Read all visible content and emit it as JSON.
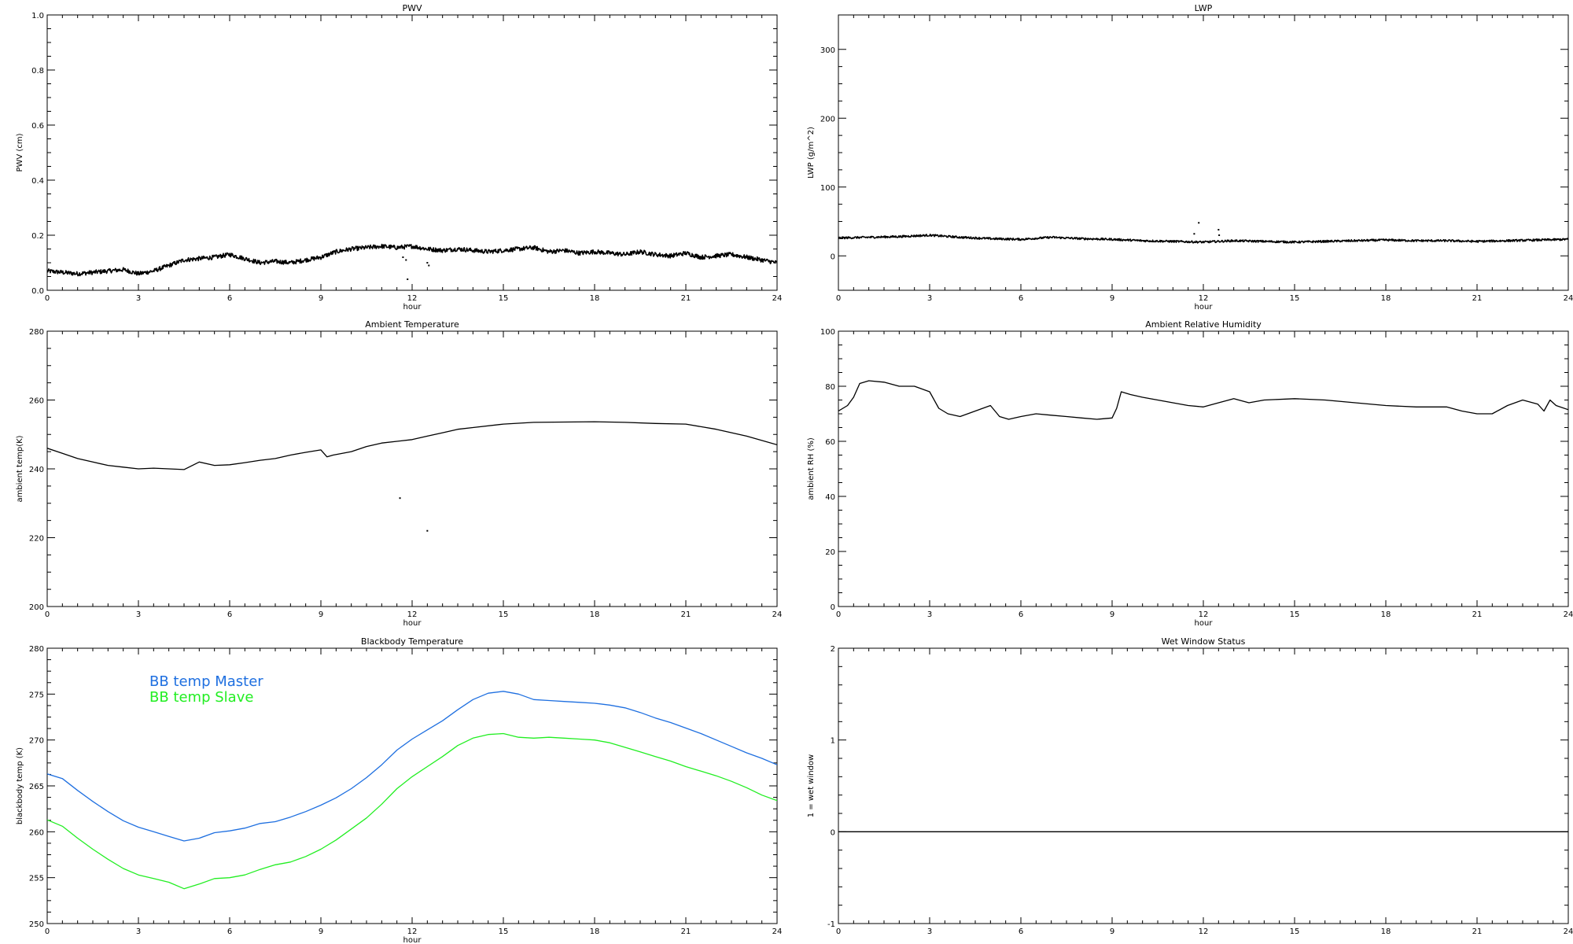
{
  "chart_data": [
    {
      "id": "pwv",
      "type": "scatter",
      "title": "PWV",
      "xlabel": "hour",
      "ylabel": "PWV (cm)",
      "xlim": [
        0,
        24
      ],
      "ylim": [
        0,
        1.0
      ],
      "xticks": [
        0,
        3,
        6,
        9,
        12,
        15,
        18,
        21,
        24
      ],
      "yticks": [
        0.0,
        0.2,
        0.4,
        0.6,
        0.8,
        1.0
      ],
      "ytick_labels": [
        "0.0",
        "0.2",
        "0.4",
        "0.6",
        "0.8",
        "1.0"
      ],
      "series": [
        {
          "color": "#000000",
          "noise": 0.008,
          "x": [
            0,
            0.5,
            1,
            1.5,
            2,
            2.5,
            3,
            3.5,
            4,
            4.5,
            5,
            5.5,
            6,
            6.5,
            7,
            7.5,
            8,
            8.5,
            9,
            9.5,
            10,
            10.5,
            11,
            11.5,
            12,
            12.5,
            13,
            13.5,
            14,
            14.5,
            15,
            15.5,
            16,
            16.5,
            17,
            17.5,
            18,
            18.5,
            19,
            19.5,
            20,
            20.5,
            21,
            21.5,
            22,
            22.5,
            23,
            23.5,
            24
          ],
          "y": [
            0.07,
            0.065,
            0.06,
            0.065,
            0.07,
            0.075,
            0.06,
            0.07,
            0.09,
            0.11,
            0.115,
            0.12,
            0.13,
            0.115,
            0.1,
            0.105,
            0.1,
            0.11,
            0.12,
            0.14,
            0.15,
            0.155,
            0.16,
            0.155,
            0.16,
            0.15,
            0.145,
            0.15,
            0.145,
            0.14,
            0.145,
            0.15,
            0.155,
            0.14,
            0.145,
            0.135,
            0.14,
            0.135,
            0.13,
            0.14,
            0.13,
            0.125,
            0.135,
            0.12,
            0.125,
            0.13,
            0.12,
            0.11,
            0.1
          ]
        },
        {
          "mode": "points",
          "color": "#000000",
          "x": [
            11.7,
            11.8,
            11.85,
            12.5,
            12.55
          ],
          "y": [
            0.12,
            0.11,
            0.04,
            0.1,
            0.09
          ]
        }
      ]
    },
    {
      "id": "lwp",
      "type": "scatter",
      "title": "LWP",
      "xlabel": "hour",
      "ylabel": "LWP (g/m^2)",
      "xlim": [
        0,
        24
      ],
      "ylim": [
        -50,
        350
      ],
      "xticks": [
        0,
        3,
        6,
        9,
        12,
        15,
        18,
        21,
        24
      ],
      "yticks": [
        0,
        100,
        200,
        300
      ],
      "ytick_labels": [
        "0",
        "100",
        "200",
        "300"
      ],
      "series": [
        {
          "color": "#000000",
          "noise": 1.5,
          "x": [
            0,
            1,
            2,
            3,
            4,
            5,
            6,
            7,
            8,
            9,
            10,
            11,
            12,
            13,
            14,
            15,
            16,
            17,
            18,
            19,
            20,
            21,
            22,
            23,
            24
          ],
          "y": [
            26,
            27,
            28,
            30,
            27,
            25,
            24,
            27,
            25,
            24,
            22,
            21,
            20,
            22,
            21,
            20,
            21,
            22,
            23,
            22,
            22,
            21,
            22,
            23,
            24
          ]
        },
        {
          "mode": "points",
          "color": "#000000",
          "x": [
            11.7,
            11.85,
            12.5,
            12.52
          ],
          "y": [
            32,
            48,
            38,
            30
          ]
        }
      ]
    },
    {
      "id": "ambient-temp",
      "type": "line",
      "title": "Ambient Temperature",
      "xlabel": "hour",
      "ylabel": "ambient temp(K)",
      "xlim": [
        0,
        24
      ],
      "ylim": [
        200,
        280
      ],
      "xticks": [
        0,
        3,
        6,
        9,
        12,
        15,
        18,
        21,
        24
      ],
      "yticks": [
        200,
        220,
        240,
        260,
        280
      ],
      "ytick_labels": [
        "200",
        "220",
        "240",
        "260",
        "280"
      ],
      "series": [
        {
          "color": "#000000",
          "x": [
            0,
            0.5,
            1,
            1.5,
            2,
            2.5,
            3,
            3.5,
            4,
            4.5,
            5,
            5.5,
            6,
            6.5,
            7,
            7.5,
            8,
            8.5,
            9,
            9.2,
            9.4,
            10,
            10.5,
            11,
            11.5,
            12,
            12.5,
            13,
            13.5,
            14,
            15,
            16,
            17,
            18,
            19,
            20,
            21,
            22,
            23,
            24
          ],
          "y": [
            246,
            244.5,
            243,
            242,
            241,
            240.5,
            240,
            240.2,
            240,
            239.8,
            242,
            241,
            241.2,
            241.8,
            242.5,
            243,
            244,
            244.8,
            245.5,
            243.5,
            244,
            245,
            246.5,
            247.5,
            248,
            248.5,
            249.5,
            250.5,
            251.5,
            252,
            253,
            253.5,
            253.6,
            253.7,
            253.5,
            253.2,
            253,
            251.5,
            249.5,
            247
          ]
        },
        {
          "mode": "points",
          "color": "#000000",
          "x": [
            11.6,
            12.5
          ],
          "y": [
            231.5,
            222
          ]
        }
      ]
    },
    {
      "id": "ambient-rh",
      "type": "line",
      "title": "Ambient Relative Humidity",
      "xlabel": "hour",
      "ylabel": "ambient RH (%)",
      "xlim": [
        0,
        24
      ],
      "ylim": [
        0,
        100
      ],
      "xticks": [
        0,
        3,
        6,
        9,
        12,
        15,
        18,
        21,
        24
      ],
      "yticks": [
        0,
        20,
        40,
        60,
        80,
        100
      ],
      "ytick_labels": [
        "0",
        "20",
        "40",
        "60",
        "80",
        "100"
      ],
      "series": [
        {
          "color": "#000000",
          "x": [
            0,
            0.3,
            0.5,
            0.7,
            1,
            1.5,
            2,
            2.5,
            3,
            3.3,
            3.6,
            4,
            4.5,
            5,
            5.3,
            5.6,
            6,
            6.5,
            7,
            7.5,
            8,
            8.5,
            9,
            9.15,
            9.3,
            9.6,
            10,
            10.5,
            11,
            11.5,
            12,
            12.5,
            13,
            13.5,
            14,
            15,
            16,
            17,
            18,
            19,
            20,
            20.5,
            21,
            21.5,
            22,
            22.5,
            23,
            23.2,
            23.4,
            23.6,
            24
          ],
          "y": [
            71,
            73,
            76,
            81,
            82,
            81.5,
            80,
            80,
            78,
            72,
            70,
            69,
            71,
            73,
            69,
            68,
            69,
            70,
            69.5,
            69,
            68.5,
            68,
            68.5,
            72,
            78,
            77,
            76,
            75,
            74,
            73,
            72.5,
            74,
            75.5,
            74,
            75,
            75.5,
            75,
            74,
            73,
            72.5,
            72.5,
            71,
            70,
            70,
            73,
            75,
            73.5,
            71,
            75,
            73,
            71.5
          ]
        }
      ]
    },
    {
      "id": "blackbody-temp",
      "type": "line",
      "title": "Blackbody Temperature",
      "xlabel": "hour",
      "ylabel": "blackbody temp (K)",
      "xlim": [
        0,
        24
      ],
      "ylim": [
        250,
        280
      ],
      "xticks": [
        0,
        3,
        6,
        9,
        12,
        15,
        18,
        21,
        24
      ],
      "yticks": [
        250,
        255,
        260,
        265,
        270,
        275,
        280
      ],
      "ytick_labels": [
        "250",
        "255",
        "260",
        "265",
        "270",
        "275",
        "280"
      ],
      "legend": {
        "placement": "top-left",
        "style": "colored-text"
      },
      "series": [
        {
          "name": "BB temp Master",
          "color": "#1e6fe0",
          "x": [
            0,
            0.5,
            1,
            1.5,
            2,
            2.5,
            3,
            3.5,
            4,
            4.5,
            5,
            5.5,
            6,
            6.5,
            7,
            7.5,
            8,
            8.5,
            9,
            9.5,
            10,
            10.5,
            11,
            11.5,
            12,
            12.5,
            13,
            13.5,
            14,
            14.5,
            15,
            15.5,
            16,
            16.5,
            17,
            17.5,
            18,
            18.5,
            19,
            19.5,
            20,
            20.5,
            21,
            21.5,
            22,
            22.5,
            23,
            23.5,
            24
          ],
          "y": [
            266.3,
            265.8,
            264.5,
            263.3,
            262.2,
            261.2,
            260.5,
            260,
            259.5,
            259,
            259.3,
            259.9,
            260.1,
            260.4,
            260.9,
            261.1,
            261.6,
            262.2,
            262.9,
            263.7,
            264.7,
            265.9,
            267.3,
            268.9,
            270.1,
            271.1,
            272.1,
            273.3,
            274.4,
            275.1,
            275.3,
            275,
            274.4,
            274.3,
            274.2,
            274.1,
            274,
            273.8,
            273.5,
            273,
            272.4,
            271.9,
            271.3,
            270.7,
            270,
            269.3,
            268.6,
            268,
            267.3
          ]
        },
        {
          "name": "BB temp Slave",
          "color": "#22ee22",
          "x": [
            0,
            0.5,
            1,
            1.5,
            2,
            2.5,
            3,
            3.5,
            4,
            4.5,
            5,
            5.5,
            6,
            6.5,
            7,
            7.5,
            8,
            8.5,
            9,
            9.5,
            10,
            10.5,
            11,
            11.5,
            12,
            12.5,
            13,
            13.5,
            14,
            14.5,
            15,
            15.5,
            16,
            16.5,
            17,
            17.5,
            18,
            18.5,
            19,
            19.5,
            20,
            20.5,
            21,
            21.5,
            22,
            22.5,
            23,
            23.5,
            24
          ],
          "y": [
            261.3,
            260.6,
            259.3,
            258.1,
            257,
            256,
            255.3,
            254.9,
            254.5,
            253.8,
            254.3,
            254.9,
            255,
            255.3,
            255.9,
            256.4,
            256.7,
            257.3,
            258.1,
            259.1,
            260.3,
            261.5,
            263,
            264.7,
            266,
            267.1,
            268.2,
            269.4,
            270.2,
            270.6,
            270.7,
            270.3,
            270.2,
            270.3,
            270.2,
            270.1,
            270,
            269.7,
            269.2,
            268.7,
            268.2,
            267.7,
            267.1,
            266.6,
            266.1,
            265.5,
            264.8,
            264,
            263.4
          ]
        }
      ]
    },
    {
      "id": "wet-window",
      "type": "line",
      "title": "Wet Window Status",
      "xlabel": "",
      "ylabel": "1 = wet window",
      "xlim": [
        0,
        24
      ],
      "ylim": [
        -1,
        2
      ],
      "xticks": [
        0,
        3,
        6,
        9,
        12,
        15,
        18,
        21,
        24
      ],
      "yticks": [
        -1,
        0,
        1,
        2
      ],
      "ytick_labels": [
        "-1",
        "0",
        "1",
        "2"
      ],
      "series": [
        {
          "color": "#000000",
          "x": [
            0,
            24
          ],
          "y": [
            0,
            0
          ]
        }
      ]
    }
  ]
}
